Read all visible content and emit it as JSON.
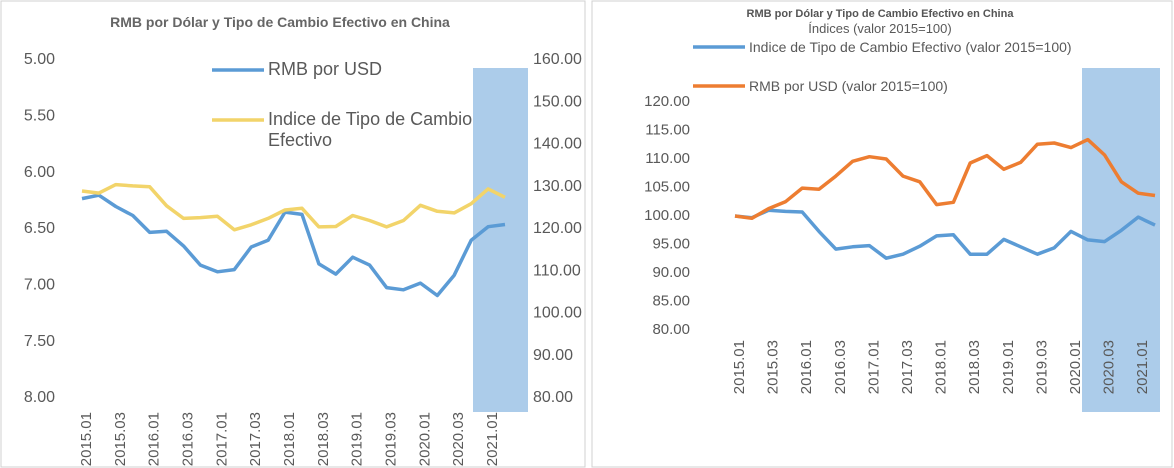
{
  "chart_data": [
    {
      "type": "line",
      "title": "RMB por Dólar y Tipo de Cambio Efectivo en China",
      "categories": [
        "2015.01",
        null,
        "2015.03",
        null,
        "2016.01",
        null,
        "2016.03",
        null,
        "2017.01",
        null,
        "2017.03",
        null,
        "2018.01",
        null,
        "2018.03",
        null,
        "2019.01",
        null,
        "2019.03",
        null,
        "2020.01",
        null,
        "2020.03",
        null,
        "2021.01",
        null
      ],
      "series": [
        {
          "name": "RMB por USD",
          "color": "#5b9bd5",
          "axis": "y",
          "values": [
            6.23,
            6.2,
            6.3,
            6.38,
            6.53,
            6.52,
            6.65,
            6.82,
            6.88,
            6.86,
            6.66,
            6.6,
            6.35,
            6.37,
            6.81,
            6.9,
            6.75,
            6.82,
            7.02,
            7.04,
            6.98,
            7.09,
            6.91,
            6.6,
            6.48,
            6.46
          ]
        },
        {
          "name": "Indice de Tipo de Cambio Efectivo",
          "color": "#f2d46a",
          "axis": "y2",
          "values": [
            129,
            128.5,
            130.5,
            130.2,
            130,
            125.5,
            122.5,
            122.7,
            123,
            119.8,
            121,
            122.5,
            124.5,
            124.9,
            120.5,
            120.6,
            123.2,
            122,
            120.5,
            122,
            125.6,
            124.2,
            123.8,
            126,
            129.5,
            127.5
          ]
        }
      ],
      "ylim": [
        8,
        5
      ],
      "yticks": [
        {
          "value": 5,
          "label": "5.00"
        },
        {
          "value": 5.5,
          "label": "5.50"
        },
        {
          "value": 6,
          "label": "6.00"
        },
        {
          "value": 6.5,
          "label": "6.50"
        },
        {
          "value": 7,
          "label": "7.00"
        },
        {
          "value": 7.5,
          "label": "7.50"
        },
        {
          "value": 8,
          "label": "8.00"
        }
      ],
      "y2lim": [
        80,
        160
      ],
      "y2ticks": [
        {
          "value": 80,
          "label": "80.00"
        },
        {
          "value": 90,
          "label": "90.00"
        },
        {
          "value": 100,
          "label": "100.00"
        },
        {
          "value": 110,
          "label": "110.00"
        },
        {
          "value": 120,
          "label": "120.00"
        },
        {
          "value": 130,
          "label": "130.00"
        },
        {
          "value": 140,
          "label": "140.00"
        },
        {
          "value": 150,
          "label": "150.00"
        },
        {
          "value": 160,
          "label": "160.00"
        }
      ],
      "grid": false
    },
    {
      "type": "line",
      "title": "RMB por Dólar y Tipo de Cambio Efectivo en China",
      "subtitle": "Índices (valor 2015=100)",
      "categories": [
        "2015.01",
        null,
        "2015.03",
        null,
        "2016.01",
        null,
        "2016.03",
        null,
        "2017.01",
        null,
        "2017.03",
        null,
        "2018.01",
        null,
        "2018.03",
        null,
        "2019.01",
        null,
        "2019.03",
        null,
        "2020.01",
        null,
        "2020.03",
        null,
        "2021.01",
        null
      ],
      "series": [
        {
          "name": "Indice de Tipo de Cambio Efectivo (valor 2015=100)",
          "color": "#5b9bd5",
          "axis": "y",
          "values": [
            100,
            99.7,
            101,
            100.8,
            100.7,
            97.3,
            94.2,
            94.6,
            94.8,
            92.6,
            93.3,
            94.7,
            96.5,
            96.7,
            93.3,
            93.3,
            95.9,
            94.6,
            93.3,
            94.4,
            97.3,
            95.8,
            95.5,
            97.5,
            99.8,
            98.4
          ]
        },
        {
          "name": "RMB por USD (valor 2015=100)",
          "color": "#ed7d31",
          "axis": "y",
          "values": [
            100,
            99.6,
            101.3,
            102.5,
            104.9,
            104.7,
            107,
            109.6,
            110.4,
            110,
            107,
            106,
            102,
            102.4,
            109.3,
            110.6,
            108.2,
            109.4,
            112.6,
            112.8,
            112,
            113.4,
            110.7,
            106,
            104,
            103.6
          ]
        }
      ],
      "ylim": [
        80,
        120
      ],
      "yticks": [
        {
          "value": 80,
          "label": "80.00"
        },
        {
          "value": 85,
          "label": "85.00"
        },
        {
          "value": 90,
          "label": "90.00"
        },
        {
          "value": 95,
          "label": "95.00"
        },
        {
          "value": 100,
          "label": "100.00"
        },
        {
          "value": 105,
          "label": "105.00"
        },
        {
          "value": 110,
          "label": "110.00"
        },
        {
          "value": 115,
          "label": "115.00"
        },
        {
          "value": 120,
          "label": "120.00"
        }
      ],
      "grid": false
    }
  ]
}
